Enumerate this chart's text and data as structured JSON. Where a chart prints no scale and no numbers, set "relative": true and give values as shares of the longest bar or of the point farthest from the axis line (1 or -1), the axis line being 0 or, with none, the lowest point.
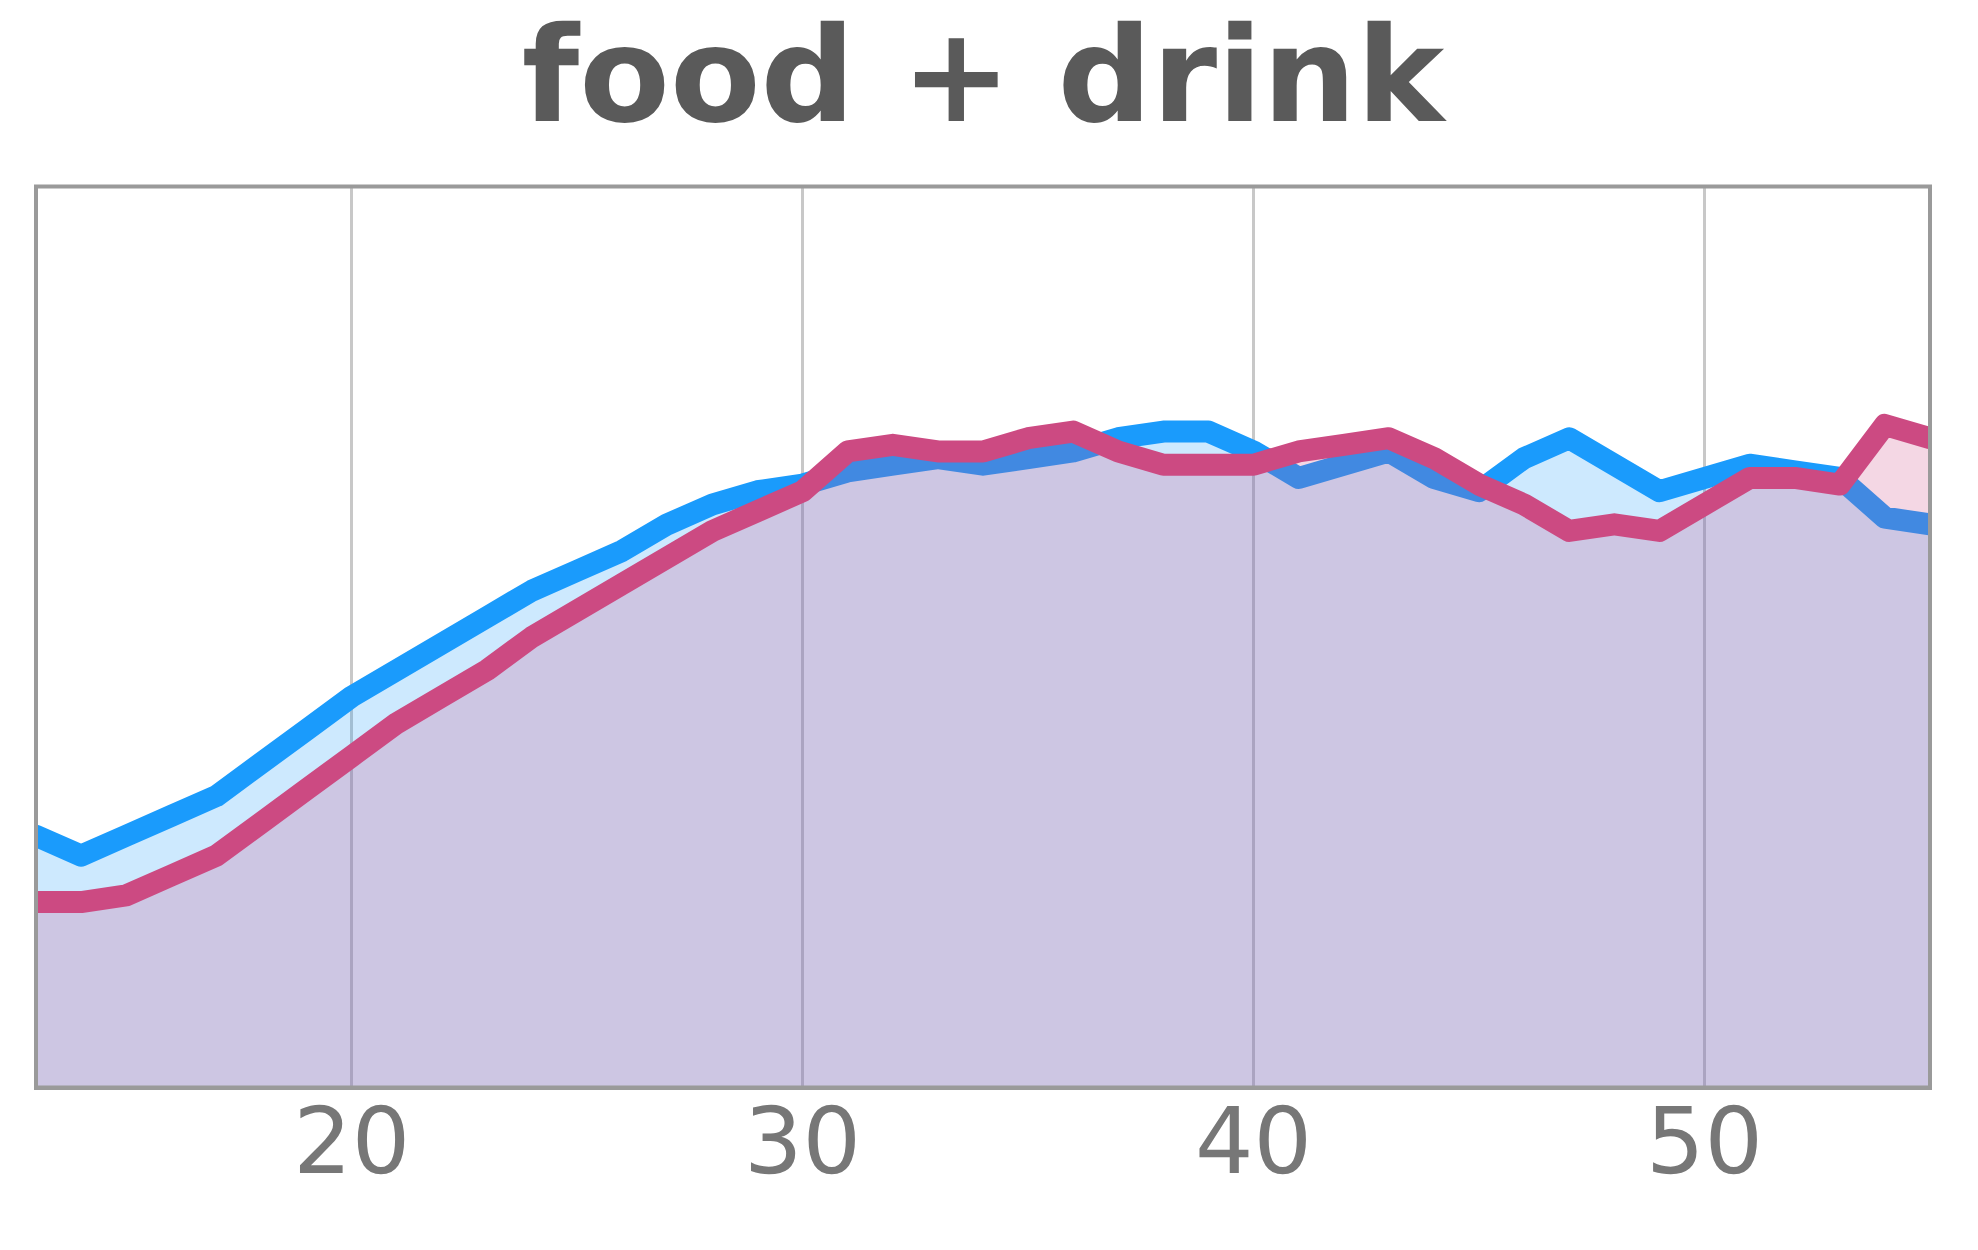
{
  "chart_data": {
    "type": "area",
    "title": "food + drink",
    "relative": true,
    "x": [
      13,
      14,
      15,
      16,
      17,
      18,
      19,
      20,
      21,
      22,
      23,
      24,
      25,
      26,
      27,
      28,
      29,
      30,
      31,
      32,
      33,
      34,
      35,
      36,
      37,
      38,
      39,
      40,
      41,
      42,
      43,
      44,
      45,
      46,
      47,
      48,
      49,
      50,
      51,
      52,
      53,
      54,
      55
    ],
    "series": [
      {
        "color": "#1a9bfc",
        "values": [
          0.38,
          0.35,
          0.38,
          0.41,
          0.44,
          0.49,
          0.54,
          0.59,
          0.63,
          0.67,
          0.71,
          0.75,
          0.78,
          0.81,
          0.85,
          0.88,
          0.9,
          0.91,
          0.93,
          0.94,
          0.95,
          0.94,
          0.95,
          0.96,
          0.98,
          0.99,
          0.99,
          0.96,
          0.92,
          0.94,
          0.96,
          0.92,
          0.9,
          0.95,
          0.98,
          0.94,
          0.9,
          0.92,
          0.94,
          0.93,
          0.92,
          0.86,
          0.85
        ]
      },
      {
        "color": "#cc4a82",
        "values": [
          0.28,
          0.28,
          0.29,
          0.32,
          0.35,
          0.4,
          0.45,
          0.5,
          0.55,
          0.59,
          0.63,
          0.68,
          0.72,
          0.76,
          0.8,
          0.84,
          0.87,
          0.9,
          0.96,
          0.97,
          0.96,
          0.96,
          0.98,
          0.99,
          0.96,
          0.94,
          0.94,
          0.94,
          0.96,
          0.97,
          0.98,
          0.95,
          0.91,
          0.88,
          0.84,
          0.85,
          0.84,
          0.88,
          0.92,
          0.92,
          0.91,
          1,
          0.98
        ]
      }
    ],
    "xlim": [
      13,
      55
    ],
    "xticks": [
      20,
      30,
      40,
      50
    ],
    "grid": "x",
    "legend": false
  }
}
